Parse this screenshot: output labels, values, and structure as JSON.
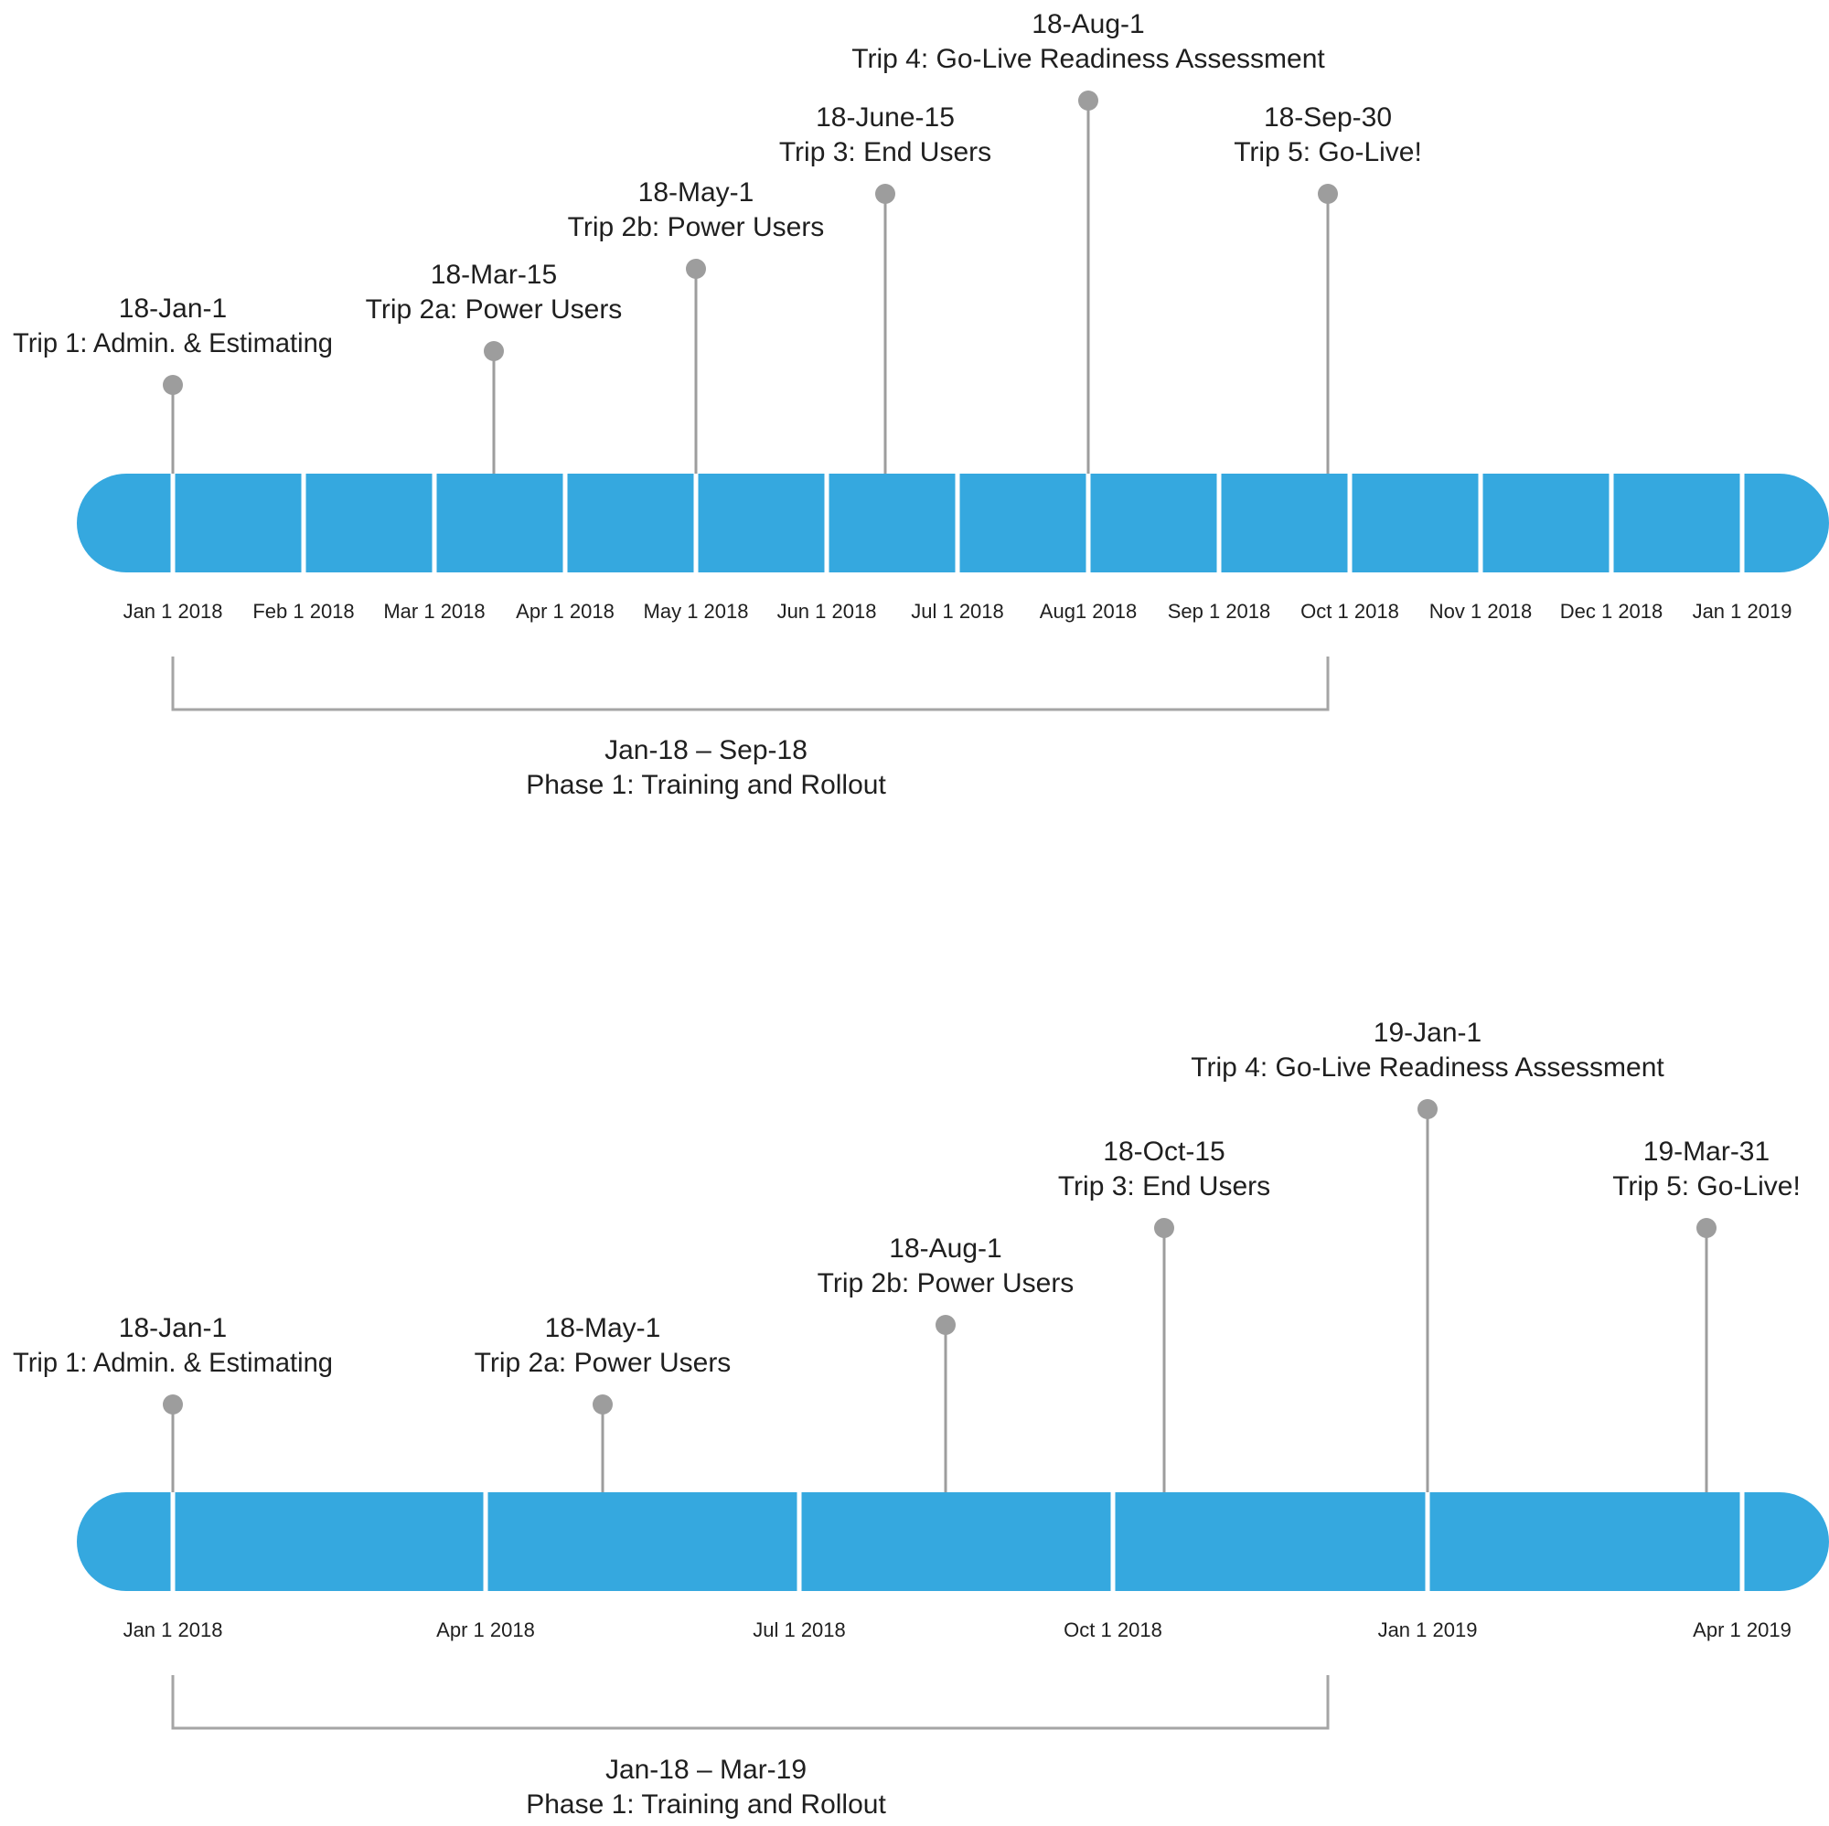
{
  "colors": {
    "bar": "#35a8df",
    "divider": "#ffffff",
    "stem": "#9d9d9d",
    "marker": "#9d9d9d",
    "bracket": "#a5a5a5",
    "text": "#1f1f1f"
  },
  "timelines": [
    {
      "ticks": [
        "Jan 1 2018",
        "Feb 1 2018",
        "Mar 1 2018",
        "Apr 1 2018",
        "May 1 2018",
        "Jun 1 2018",
        "Jul 1 2018",
        "Aug1 2018",
        "Sep 1 2018",
        "Oct 1 2018",
        "Nov 1 2018",
        "Dec 1 2018",
        "Jan 1 2019"
      ],
      "events": [
        {
          "date": "18-Jan-1",
          "label": "Trip 1: Admin. & Estimating"
        },
        {
          "date": "18-Mar-15",
          "label": "Trip 2a: Power Users"
        },
        {
          "date": "18-May-1",
          "label": "Trip 2b: Power Users"
        },
        {
          "date": "18-June-15",
          "label": "Trip 3: End Users"
        },
        {
          "date": "18-Aug-1",
          "label": "Trip 4: Go-Live Readiness Assessment"
        },
        {
          "date": "18-Sep-30",
          "label": "Trip 5: Go-Live!"
        }
      ],
      "phase": {
        "range": "Jan-18 – Sep-18",
        "label": "Phase 1: Training and Rollout"
      }
    },
    {
      "ticks": [
        "Jan 1 2018",
        "Apr 1 2018",
        "Jul 1 2018",
        "Oct 1 2018",
        "Jan 1 2019",
        "Apr 1 2019"
      ],
      "events": [
        {
          "date": "18-Jan-1",
          "label": "Trip 1: Admin. & Estimating"
        },
        {
          "date": "18-May-1",
          "label": "Trip 2a: Power Users"
        },
        {
          "date": "18-Aug-1",
          "label": "Trip 2b: Power Users"
        },
        {
          "date": "18-Oct-15",
          "label": "Trip 3: End Users"
        },
        {
          "date": "19-Jan-1",
          "label": "Trip 4: Go-Live Readiness Assessment"
        },
        {
          "date": "19-Mar-31",
          "label": "Trip 5: Go-Live!"
        }
      ],
      "phase": {
        "range": "Jan-18 – Mar-19",
        "label": "Phase 1: Training and Rollout"
      }
    }
  ]
}
